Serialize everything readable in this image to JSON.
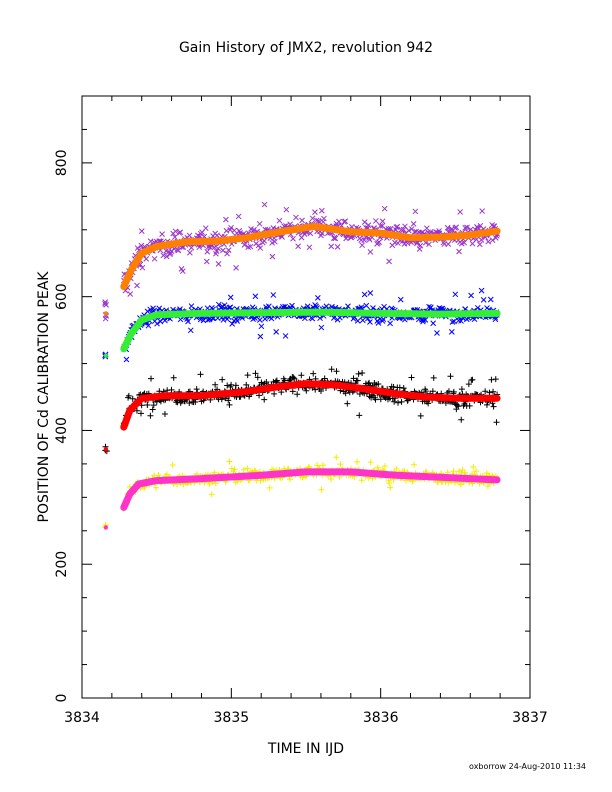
{
  "chart_data": {
    "type": "scatter",
    "title": "Gain History of JMX2, revolution 942",
    "xlabel": "TIME IN IJD",
    "ylabel": "POSITION OF Cd CALIBRATION PEAK",
    "xlim": [
      3834,
      3837
    ],
    "ylim": [
      0,
      900
    ],
    "x_ticks": [
      3834,
      3835,
      3836,
      3837
    ],
    "y_ticks": [
      0,
      200,
      400,
      600,
      800
    ],
    "grid": false,
    "footer": "oxborrow 24-Aug-2010 11:34",
    "series": [
      {
        "marker": "x",
        "color": "#9933cc",
        "x_range": [
          3834.28,
          3836.78
        ],
        "center": 690,
        "spread": 22,
        "early_points": [
          {
            "x": 3834.16,
            "y": 570
          },
          {
            "x": 3834.16,
            "y": 590
          }
        ]
      },
      {
        "marker": "line",
        "color": "#ff8000",
        "x": [
          3834.28,
          3834.33,
          3834.4,
          3834.5,
          3834.7,
          3834.9,
          3835.1,
          3835.3,
          3835.55,
          3835.8,
          3836.0,
          3836.2,
          3836.4,
          3836.6,
          3836.78
        ],
        "y": [
          615,
          640,
          665,
          675,
          682,
          683,
          688,
          696,
          705,
          697,
          695,
          688,
          689,
          692,
          698
        ]
      },
      {
        "marker": "x",
        "color": "#0000ff",
        "x_range": [
          3834.28,
          3836.78
        ],
        "center": 572,
        "spread": 15,
        "early_points": [
          {
            "x": 3834.16,
            "y": 512
          }
        ]
      },
      {
        "marker": "line",
        "color": "#33ee33",
        "x": [
          3834.28,
          3834.33,
          3834.4,
          3834.5,
          3834.8,
          3835.2,
          3835.6,
          3836.0,
          3836.4,
          3836.78
        ],
        "y": [
          522,
          545,
          565,
          573,
          575,
          576,
          577,
          575,
          574,
          575
        ]
      },
      {
        "marker": "+",
        "color": "#000000",
        "x_range": [
          3834.28,
          3836.78
        ],
        "center": 452,
        "spread": 16,
        "early_points": [
          {
            "x": 3834.16,
            "y": 372
          }
        ]
      },
      {
        "marker": "line",
        "color": "#ff0000",
        "x": [
          3834.28,
          3834.32,
          3834.4,
          3834.55,
          3834.8,
          3835.1,
          3835.3,
          3835.5,
          3835.7,
          3835.9,
          3836.1,
          3836.3,
          3836.5,
          3836.78
        ],
        "y": [
          405,
          430,
          448,
          452,
          452,
          458,
          465,
          470,
          468,
          462,
          455,
          450,
          448,
          448
        ]
      },
      {
        "marker": "+",
        "color": "#eeee00",
        "x_range": [
          3834.28,
          3836.78
        ],
        "center": 330,
        "spread": 12,
        "early_points": [
          {
            "x": 3834.16,
            "y": 255
          }
        ]
      },
      {
        "marker": "line",
        "color": "#ff33cc",
        "x": [
          3834.28,
          3834.32,
          3834.38,
          3834.5,
          3834.8,
          3835.2,
          3835.5,
          3835.8,
          3836.1,
          3836.4,
          3836.78
        ],
        "y": [
          285,
          305,
          320,
          325,
          328,
          333,
          338,
          338,
          333,
          330,
          326
        ]
      }
    ]
  }
}
